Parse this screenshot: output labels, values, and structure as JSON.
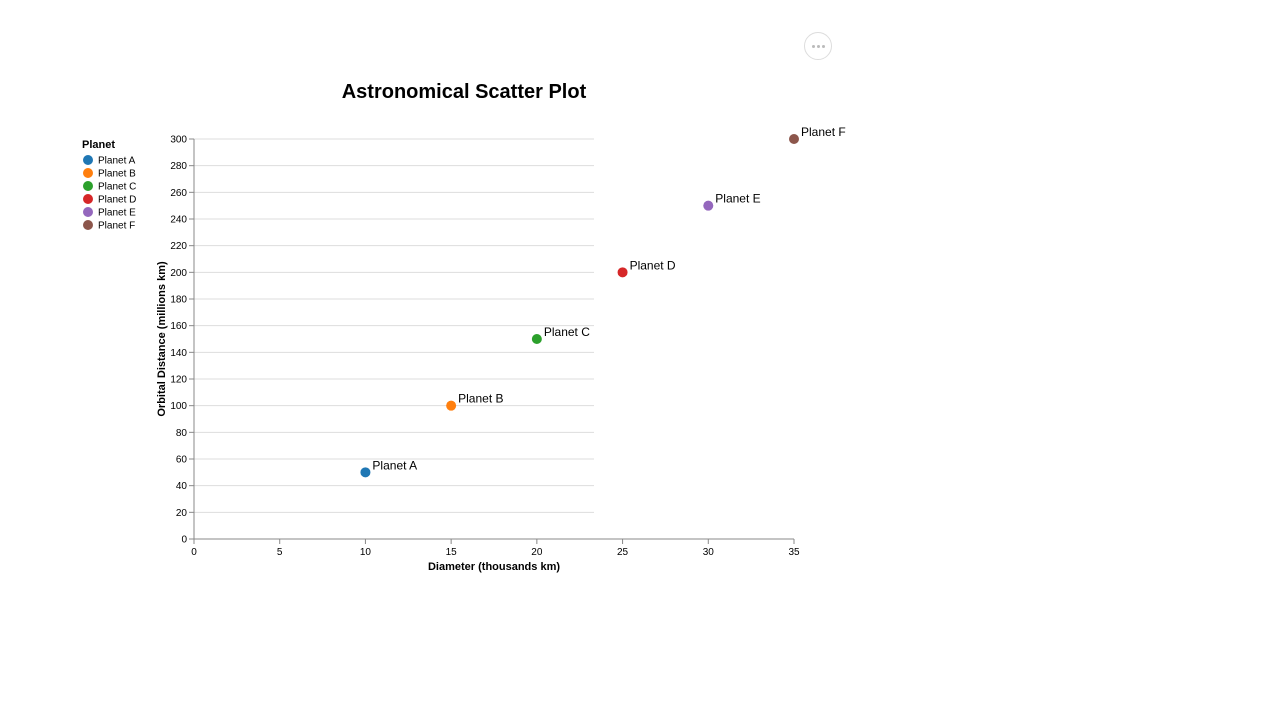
{
  "menu": {
    "icon": "ellipsis-icon"
  },
  "chart_data": {
    "type": "scatter",
    "title": "Astronomical Scatter Plot",
    "xlabel": "Diameter (thousands km)",
    "ylabel": "Orbital Distance (millions km)",
    "xlim": [
      0,
      35
    ],
    "ylim": [
      0,
      300
    ],
    "xticks": [
      0,
      5,
      10,
      15,
      20,
      25,
      30,
      35
    ],
    "yticks": [
      0,
      20,
      40,
      60,
      80,
      100,
      120,
      140,
      160,
      180,
      200,
      220,
      240,
      260,
      280,
      300
    ],
    "grid": "horizontal",
    "legend": {
      "title": "Planet",
      "placement": "left"
    },
    "points": [
      {
        "label": "Planet A",
        "x": 10,
        "y": 50,
        "color": "#1f77b4"
      },
      {
        "label": "Planet B",
        "x": 15,
        "y": 100,
        "color": "#ff7f0e"
      },
      {
        "label": "Planet C",
        "x": 20,
        "y": 150,
        "color": "#2ca02c"
      },
      {
        "label": "Planet D",
        "x": 25,
        "y": 200,
        "color": "#d62728"
      },
      {
        "label": "Planet E",
        "x": 30,
        "y": 250,
        "color": "#9467bd"
      },
      {
        "label": "Planet F",
        "x": 35,
        "y": 300,
        "color": "#8c564b"
      }
    ]
  }
}
